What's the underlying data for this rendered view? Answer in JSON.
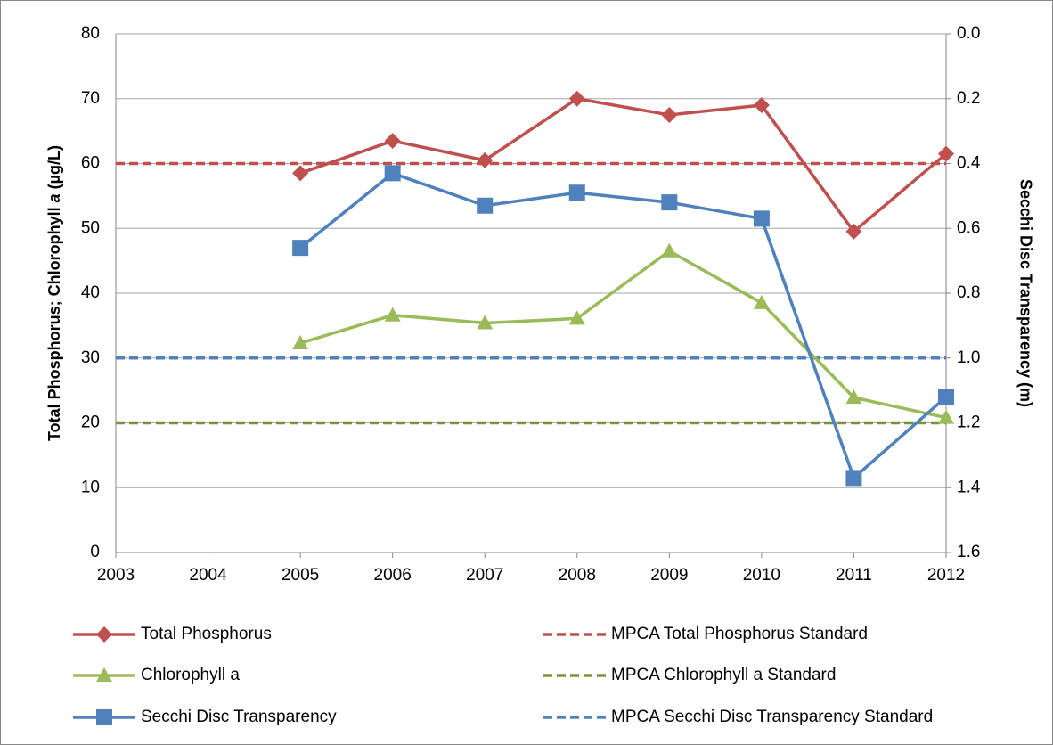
{
  "chart_data": {
    "type": "line",
    "y_label": [
      "Total Phosphorus; Chlorophyll ",
      "a",
      " (µg/L)"
    ],
    "y2_label": "Secchi Disc Transparency (m)",
    "x": [
      2005,
      2006,
      2007,
      2008,
      2009,
      2010,
      2011,
      2012
    ],
    "xlim": [
      2003,
      2012
    ],
    "xticks": [
      2003,
      2004,
      2005,
      2006,
      2007,
      2008,
      2009,
      2010,
      2011,
      2012
    ],
    "ylim": [
      0,
      80
    ],
    "yticks": [
      0,
      10,
      20,
      30,
      40,
      50,
      60,
      70,
      80
    ],
    "y2lim": [
      1.6,
      0
    ],
    "y2ticks": [
      {
        "value": 0,
        "label": "0.0"
      },
      0.2,
      0.4,
      0.6,
      0.8,
      {
        "value": 1,
        "label": "1.0"
      },
      1.2,
      1.4,
      1.6
    ],
    "grid": true,
    "series": [
      {
        "name": "Total Phosphorus",
        "color": "#c0504d",
        "marker": "diamond",
        "values": [
          58.5,
          63.5,
          60.5,
          70,
          67.5,
          69,
          49.5,
          61.5
        ]
      },
      {
        "name": "Chlorophyll a",
        "color": "#9bbb59",
        "marker": "triangle",
        "values": [
          32.3,
          36.6,
          35.4,
          36.1,
          46.5,
          38.5,
          23.9,
          20.8
        ]
      },
      {
        "name": "Secchi Disc Transparency",
        "color": "#4f81bd",
        "marker": "square",
        "axis": "y2",
        "values": [
          0.66,
          0.43,
          0.53,
          0.49,
          0.52,
          0.57,
          1.37,
          1.12
        ]
      }
    ],
    "reference_lines": [
      {
        "name": "MPCA Total Phosphorus Standard",
        "color": "#c0504d",
        "value": 60
      },
      {
        "name": "MPCA Chlorophyll a Standard",
        "color": "#77933c",
        "value": 20
      },
      {
        "name": "MPCA Secchi Disc Transparency Standard",
        "color": "#4f81bd",
        "value": 1,
        "axis": "y2"
      }
    ]
  }
}
